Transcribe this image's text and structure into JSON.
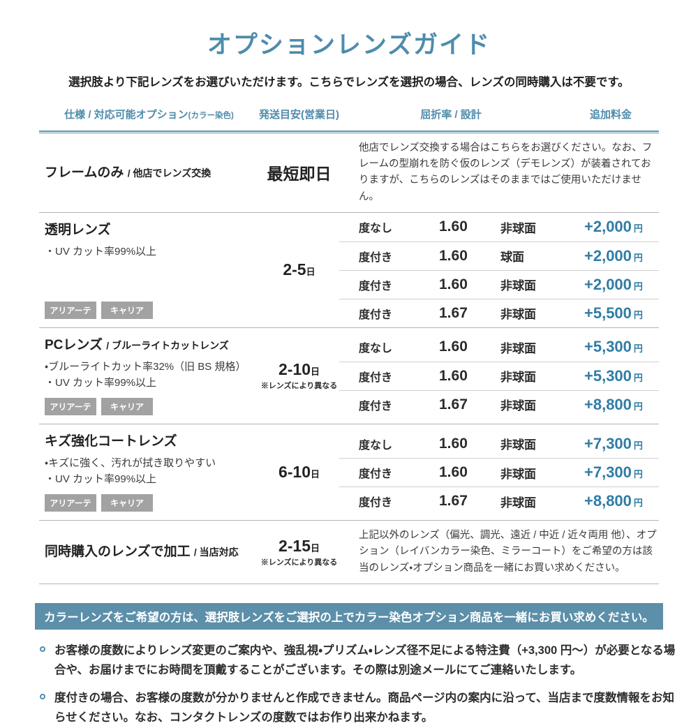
{
  "page": {
    "title": "オプションレンズガイド",
    "subtitle": "選択肢より下記レンズをお選びいただけます。こちらでレンズを選択の場合、レンズの同時購入は不要です。"
  },
  "colors": {
    "accent_blue": "#4E8CAC",
    "price_blue": "#2F7CA5",
    "banner_background": "#5C8FA9",
    "tag_gray": "#A2A2A2"
  },
  "table": {
    "headers": [
      {
        "label": "仕様 / 対応可能オプション",
        "small": "(カラー染色)"
      },
      {
        "label": "発送目安(営業日)",
        "small": ""
      },
      {
        "label": "屈折率 / 設計",
        "small": ""
      },
      {
        "label": "追加料金",
        "small": ""
      }
    ],
    "rows": [
      {
        "name": "フレームのみ",
        "name_suffix": "/ 他店でレンズ交換",
        "features": [],
        "tags": [],
        "shipping": {
          "days": "最短即日",
          "unit": "",
          "note": ""
        },
        "description": "他店でレンズ交換する場合はこちらをお選びください。なお、フレームの型崩れを防ぐ仮のレンズ（デモレンズ）が装着されておりますが、こちらのレンズはそのままではご使用いただけません。",
        "options": []
      },
      {
        "name": "透明レンズ",
        "name_suffix": "",
        "features": [
          "・UV カット率99%以上"
        ],
        "tags": [
          "アリアーテ",
          "キャリア"
        ],
        "shipping": {
          "days": "2-5",
          "unit": "日",
          "note": ""
        },
        "description": "",
        "options": [
          {
            "power": "度なし",
            "index": "1.60",
            "design": "非球面",
            "price": "+2,000",
            "currency": "円"
          },
          {
            "power": "度付き",
            "index": "1.60",
            "design": "球面",
            "price": "+2,000",
            "currency": "円"
          },
          {
            "power": "度付き",
            "index": "1.60",
            "design": "非球面",
            "price": "+2,000",
            "currency": "円"
          },
          {
            "power": "度付き",
            "index": "1.67",
            "design": "非球面",
            "price": "+5,500",
            "currency": "円"
          }
        ]
      },
      {
        "name": "PCレンズ",
        "name_suffix": "/ ブルーライトカットレンズ",
        "features": [
          "・ブルーライトカット率32%（旧 BS 規格）",
          "・UV カット率99%以上"
        ],
        "tags": [
          "アリアーテ",
          "キャリア"
        ],
        "shipping": {
          "days": "2-10",
          "unit": "日",
          "note": "※レンズにより異なる"
        },
        "description": "",
        "options": [
          {
            "power": "度なし",
            "index": "1.60",
            "design": "非球面",
            "price": "+5,300",
            "currency": "円"
          },
          {
            "power": "度付き",
            "index": "1.60",
            "design": "非球面",
            "price": "+5,300",
            "currency": "円"
          },
          {
            "power": "度付き",
            "index": "1.67",
            "design": "非球面",
            "price": "+8,800",
            "currency": "円"
          }
        ]
      },
      {
        "name": "キズ強化コートレンズ",
        "name_suffix": "",
        "features": [
          "・キズに強く、汚れが拭き取りやすい",
          "・UV カット率99%以上"
        ],
        "tags": [
          "アリアーテ",
          "キャリア"
        ],
        "shipping": {
          "days": "6-10",
          "unit": "日",
          "note": ""
        },
        "description": "",
        "options": [
          {
            "power": "度なし",
            "index": "1.60",
            "design": "非球面",
            "price": "+7,300",
            "currency": "円"
          },
          {
            "power": "度付き",
            "index": "1.60",
            "design": "非球面",
            "price": "+7,300",
            "currency": "円"
          },
          {
            "power": "度付き",
            "index": "1.67",
            "design": "非球面",
            "price": "+8,800",
            "currency": "円"
          }
        ]
      },
      {
        "name": "同時購入のレンズで加工",
        "name_suffix": "/ 当店対応",
        "features": [],
        "tags": [],
        "shipping": {
          "days": "2-15",
          "unit": "日",
          "note": "※レンズにより異なる"
        },
        "description": "上記以外のレンズ（偏光、調光、遠近 / 中近 / 近々両用 他）、オプション（レイバンカラー染色、ミラーコート）をご希望の方は該当のレンズ・オプション商品を一緒にお買い求めください。",
        "options": []
      }
    ]
  },
  "banner": {
    "text": "カラーレンズをご希望の方は、選択肢レンズをご選択の上でカラー染色オプション商品を一緒にお買い求めください。"
  },
  "notes": [
    {
      "text": "お客様の度数によりレンズ変更のご案内や、強乱視・プリズム・レンズ径不足による特注費（+3,300 円〜）が必要となる場合や、お届けまでにお時間を頂戴することがございます。その際は別途メールにてご連絡いたします。"
    },
    {
      "text": "度付きの場合、お客様の度数が分かりませんと作成できません。商品ページ内の案内に沿って、当店まで度数情報をお知らせください。なお、コンタクトレンズの度数ではお作り出来かねます。"
    }
  ]
}
